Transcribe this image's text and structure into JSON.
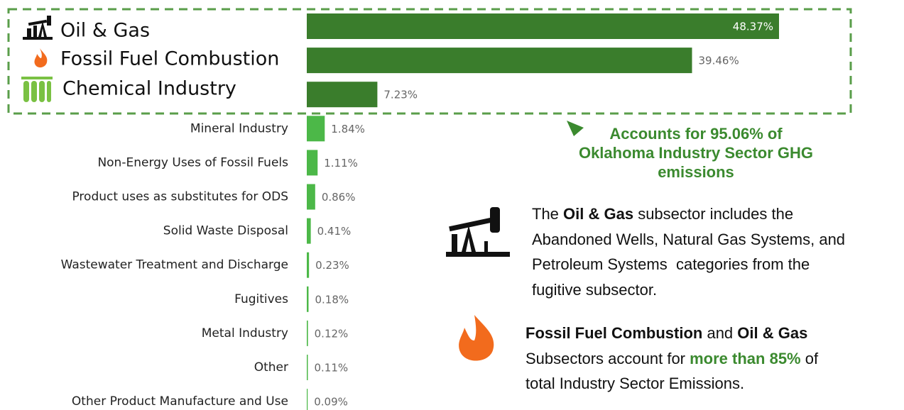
{
  "chart_data": {
    "type": "bar",
    "orientation": "horizontal",
    "categories": [
      "Oil & Gas",
      "Fossil Fuel Combustion",
      "Chemical Industry",
      "Mineral Industry",
      "Non-Energy Uses of Fossil Fuels",
      "Product uses as substitutes for ODS",
      "Solid Waste Disposal",
      "Wastewater Treatment and Discharge",
      "Fugitives",
      "Metal Industry",
      "Other",
      "Other Product Manufacture and Use"
    ],
    "values": [
      48.37,
      39.46,
      7.23,
      1.84,
      1.11,
      0.86,
      0.41,
      0.23,
      0.18,
      0.12,
      0.11,
      0.09
    ],
    "value_labels": [
      "48.37%",
      "39.46%",
      "7.23%",
      "1.84%",
      "1.11%",
      "0.86%",
      "0.41%",
      "0.23%",
      "0.18%",
      "0.12%",
      "0.11%",
      "0.09%"
    ],
    "colors": [
      "#3a7d2c",
      "#3a7d2c",
      "#3a7d2c",
      "#4cb848",
      "#4cb848",
      "#4cb848",
      "#4cb848",
      "#4cb848",
      "#4cb848",
      "#4cb848",
      "#4cb848",
      "#4cb848"
    ],
    "annotation": [
      "Accounts for 95.06% of",
      "Oklahoma Industry Sector GHG",
      "emissions"
    ],
    "note1": [
      [
        "The ",
        "Oil & Gas",
        " subsector includes the"
      ],
      [
        "Abandoned Wells, Natural Gas Systems, and"
      ],
      [
        "Petroleum Systems  categories from the"
      ],
      [
        "fugitive subsector."
      ]
    ],
    "note2": [
      [
        "Fossil Fuel Combustion",
        " and ",
        "Oil & Gas"
      ],
      [
        "Subsectors account for ",
        "more than 85%",
        " of"
      ],
      [
        "total Industry Sector Emissions."
      ]
    ]
  }
}
